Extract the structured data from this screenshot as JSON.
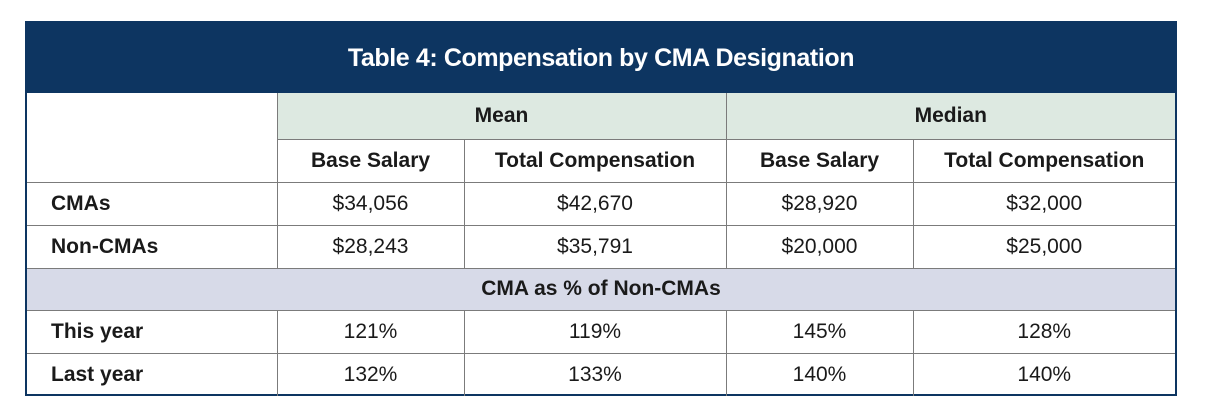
{
  "title": "Table 4: Compensation by CMA Designation",
  "groups": {
    "mean": "Mean",
    "median": "Median"
  },
  "columns": {
    "base": "Base Salary",
    "total": "Total Compensation"
  },
  "rows": [
    {
      "label": "CMAs",
      "values": [
        "$34,056",
        "$42,670",
        "$28,920",
        "$32,000"
      ]
    },
    {
      "label": "Non-CMAs",
      "values": [
        "$28,243",
        "$35,791",
        "$20,000",
        "$25,000"
      ]
    }
  ],
  "band": "CMA as % of Non-CMAs",
  "pct_rows": [
    {
      "label": "This year",
      "values": [
        "121%",
        "119%",
        "145%",
        "128%"
      ]
    },
    {
      "label": "Last year",
      "values": [
        "132%",
        "133%",
        "140%",
        "140%"
      ]
    }
  ],
  "colors": {
    "navy": "#0d3561",
    "mint": "#dde9e1",
    "lavender": "#d7dae8"
  }
}
